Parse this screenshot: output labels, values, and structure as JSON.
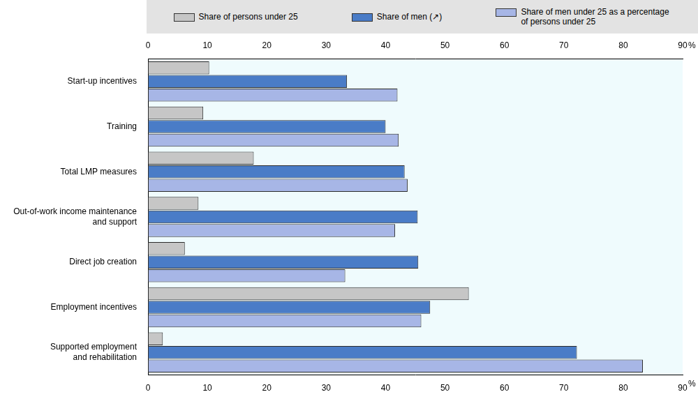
{
  "chart_data": {
    "type": "bar",
    "orientation": "horizontal",
    "categories": [
      [
        "Start-up incentives"
      ],
      [
        "Training"
      ],
      [
        "Total LMP measures"
      ],
      [
        "Out-of-work income maintenance",
        "and support"
      ],
      [
        "Direct job creation"
      ],
      [
        "Employment incentives"
      ],
      [
        "Supported employment",
        "and rehabilitation"
      ]
    ],
    "series": [
      {
        "name": "Share of persons under 25",
        "color": "#c6c6c6",
        "values": [
          10.3,
          9.3,
          17.8,
          8.5,
          6.2,
          54,
          2.5
        ]
      },
      {
        "name": "Share of men (↗)",
        "color": "#4a7cc7",
        "values": [
          33.5,
          40,
          43.2,
          45.4,
          45.5,
          47.5,
          72.2
        ]
      },
      {
        "name": "Share of men under 25 as a percentage of persons under 25",
        "color": "#a7b6e6",
        "values": [
          42,
          42.2,
          43.7,
          41.6,
          33.2,
          46,
          83.3
        ]
      }
    ],
    "x_label": "%",
    "xlim": [
      0,
      90
    ],
    "xticks": [
      0,
      10,
      20,
      30,
      40,
      50,
      60,
      70,
      80,
      90
    ],
    "grid": false,
    "legend": "top"
  }
}
